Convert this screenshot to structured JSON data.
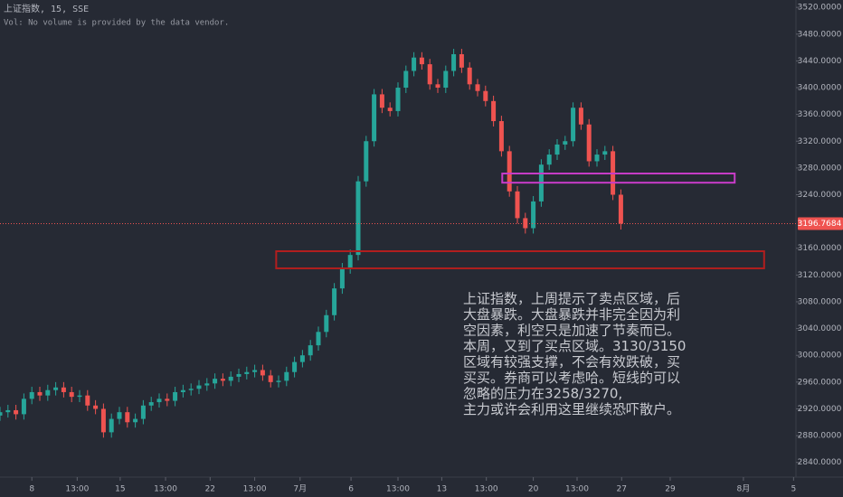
{
  "chart_data": {
    "type": "candlestick",
    "title": "上证指数, 15, SSE",
    "subtitle": "Vol: No volume is provided by the data vendor.",
    "up_color": "#26a69a",
    "down_color": "#ef5350",
    "xlim": [
      0,
      100
    ],
    "ylim": [
      2818,
      3531
    ],
    "x": [
      0,
      1,
      2,
      3,
      4,
      5,
      6,
      7,
      8,
      9,
      10,
      11,
      12,
      13,
      14,
      15,
      16,
      17,
      18,
      19,
      20,
      21,
      22,
      23,
      24,
      25,
      26,
      27,
      28,
      29,
      30,
      31,
      32,
      33,
      34,
      35,
      36,
      37,
      38,
      39,
      40,
      41,
      42,
      43,
      44,
      45,
      46,
      47,
      48,
      49,
      50,
      51,
      52,
      53,
      54,
      55,
      56,
      57,
      58,
      59,
      60,
      61,
      62,
      63,
      64,
      65,
      66,
      67,
      68,
      69,
      70,
      71,
      72,
      73,
      74,
      75,
      76,
      77,
      78
    ],
    "open": [
      2910,
      2915,
      2918,
      2912,
      2935,
      2945,
      2940,
      2948,
      2952,
      2945,
      2938,
      2940,
      2925,
      2920,
      2885,
      2905,
      2915,
      2900,
      2905,
      2925,
      2930,
      2935,
      2932,
      2945,
      2948,
      2950,
      2955,
      2958,
      2965,
      2962,
      2968,
      2972,
      2975,
      2978,
      2970,
      2960,
      2962,
      2975,
      2990,
      3000,
      3015,
      3035,
      3060,
      3100,
      3130,
      3150,
      3260,
      3320,
      3390,
      3370,
      3365,
      3400,
      3425,
      3445,
      3435,
      3405,
      3400,
      3425,
      3450,
      3430,
      3405,
      3395,
      3380,
      3350,
      3305,
      3245,
      3205,
      3190,
      3230,
      3285,
      3300,
      3315,
      3320,
      3370,
      3345,
      3290,
      3300,
      3305,
      3240
    ],
    "high": [
      2923,
      2926,
      2926,
      2943,
      2953,
      2953,
      2956,
      2960,
      2960,
      2953,
      2948,
      2948,
      2933,
      2928,
      2913,
      2923,
      2923,
      2913,
      2933,
      2938,
      2943,
      2943,
      2953,
      2956,
      2958,
      2963,
      2966,
      2973,
      2973,
      2976,
      2980,
      2983,
      2986,
      2986,
      2978,
      2970,
      2983,
      2998,
      3008,
      3023,
      3043,
      3068,
      3108,
      3138,
      3158,
      3268,
      3328,
      3398,
      3398,
      3378,
      3408,
      3433,
      3453,
      3453,
      3443,
      3413,
      3433,
      3458,
      3458,
      3438,
      3413,
      3403,
      3388,
      3358,
      3313,
      3253,
      3213,
      3238,
      3293,
      3308,
      3323,
      3328,
      3378,
      3378,
      3353,
      3308,
      3313,
      3313,
      3248
    ],
    "low": [
      2902,
      2907,
      2904,
      2904,
      2927,
      2932,
      2932,
      2940,
      2937,
      2930,
      2930,
      2917,
      2912,
      2877,
      2877,
      2897,
      2892,
      2892,
      2897,
      2917,
      2922,
      2924,
      2924,
      2937,
      2940,
      2942,
      2947,
      2950,
      2954,
      2954,
      2960,
      2964,
      2967,
      2962,
      2952,
      2952,
      2954,
      2967,
      2982,
      2992,
      3007,
      3027,
      3052,
      3092,
      3122,
      3142,
      3252,
      3312,
      3362,
      3357,
      3357,
      3392,
      3417,
      3427,
      3397,
      3392,
      3392,
      3417,
      3422,
      3397,
      3387,
      3372,
      3342,
      3297,
      3237,
      3197,
      3182,
      3182,
      3222,
      3277,
      3292,
      3307,
      3312,
      3337,
      3282,
      3282,
      3292,
      3232,
      3188
    ],
    "close": [
      2915,
      2918,
      2912,
      2935,
      2945,
      2940,
      2948,
      2952,
      2945,
      2938,
      2940,
      2925,
      2920,
      2885,
      2905,
      2915,
      2900,
      2905,
      2925,
      2930,
      2935,
      2932,
      2945,
      2948,
      2950,
      2955,
      2958,
      2965,
      2962,
      2968,
      2972,
      2975,
      2978,
      2970,
      2960,
      2962,
      2975,
      2990,
      3000,
      3015,
      3035,
      3060,
      3100,
      3130,
      3150,
      3260,
      3320,
      3390,
      3370,
      3365,
      3400,
      3425,
      3445,
      3435,
      3405,
      3400,
      3425,
      3450,
      3430,
      3405,
      3395,
      3380,
      3350,
      3305,
      3245,
      3205,
      3190,
      3230,
      3285,
      3300,
      3315,
      3320,
      3370,
      3345,
      3290,
      3300,
      3305,
      3240,
      3196.7684
    ],
    "last_price": 3196.7684,
    "last_price_color": "#ef5350",
    "yticks": [
      {
        "value": 3520,
        "label": "3520.0000"
      },
      {
        "value": 3480,
        "label": "3480.0000"
      },
      {
        "value": 3440,
        "label": "3440.0000"
      },
      {
        "value": 3400,
        "label": "3400.0000"
      },
      {
        "value": 3360,
        "label": "3360.0000"
      },
      {
        "value": 3320,
        "label": "3320.0000"
      },
      {
        "value": 3280,
        "label": "3280.0000"
      },
      {
        "value": 3240,
        "label": "3240.0000"
      },
      {
        "value": 3160,
        "label": "3160.0000"
      },
      {
        "value": 3120,
        "label": "3120.0000"
      },
      {
        "value": 3080,
        "label": "3080.0000"
      },
      {
        "value": 3040,
        "label": "3040.0000"
      },
      {
        "value": 3000,
        "label": "3000.0000"
      },
      {
        "value": 2960,
        "label": "2960.0000"
      },
      {
        "value": 2920,
        "label": "2920.0000"
      },
      {
        "value": 2880,
        "label": "2880.0000"
      },
      {
        "value": 2840,
        "label": "2840.0000"
      }
    ],
    "xticks": [
      {
        "value": 4,
        "label": "8"
      },
      {
        "value": 9.7,
        "label": "13:00"
      },
      {
        "value": 15.1,
        "label": "15"
      },
      {
        "value": 20.8,
        "label": "13:00"
      },
      {
        "value": 26.4,
        "label": "22"
      },
      {
        "value": 32,
        "label": "13:00"
      },
      {
        "value": 37.7,
        "label": "7月"
      },
      {
        "value": 44.1,
        "label": "6"
      },
      {
        "value": 50,
        "label": "13:00"
      },
      {
        "value": 55.5,
        "label": "13"
      },
      {
        "value": 61.1,
        "label": "13:00"
      },
      {
        "value": 67,
        "label": "20"
      },
      {
        "value": 72.5,
        "label": "13:00"
      },
      {
        "value": 78.1,
        "label": "27"
      },
      {
        "value": 84.2,
        "label": "29"
      },
      {
        "value": 93.4,
        "label": "8月"
      },
      {
        "value": 99.7,
        "label": "5"
      }
    ],
    "zones": [
      {
        "color": "#c83cc8",
        "xlim": [
          63.1,
          92.3
        ],
        "ylim": [
          3258,
          3271.7
        ]
      },
      {
        "color": "#b21e1e",
        "xlim": [
          34.7,
          96.0
        ],
        "ylim": [
          3130,
          3155.6
        ]
      }
    ],
    "annotation": [
      "上证指数，上周提示了卖点区域，后",
      "大盘暴跌。大盘暴跌并非完全因为利",
      "空因素，利空只是加速了节奏而已。",
      "本周，又到了买点区域。3130/3150",
      "区域有较强支撑，不会有效跌破，买",
      "买买。券商可以考虑哈。短线的可以",
      "忽略的压力在3258/3270,",
      "主力或许会利用这里继续恐吓散户。"
    ]
  }
}
